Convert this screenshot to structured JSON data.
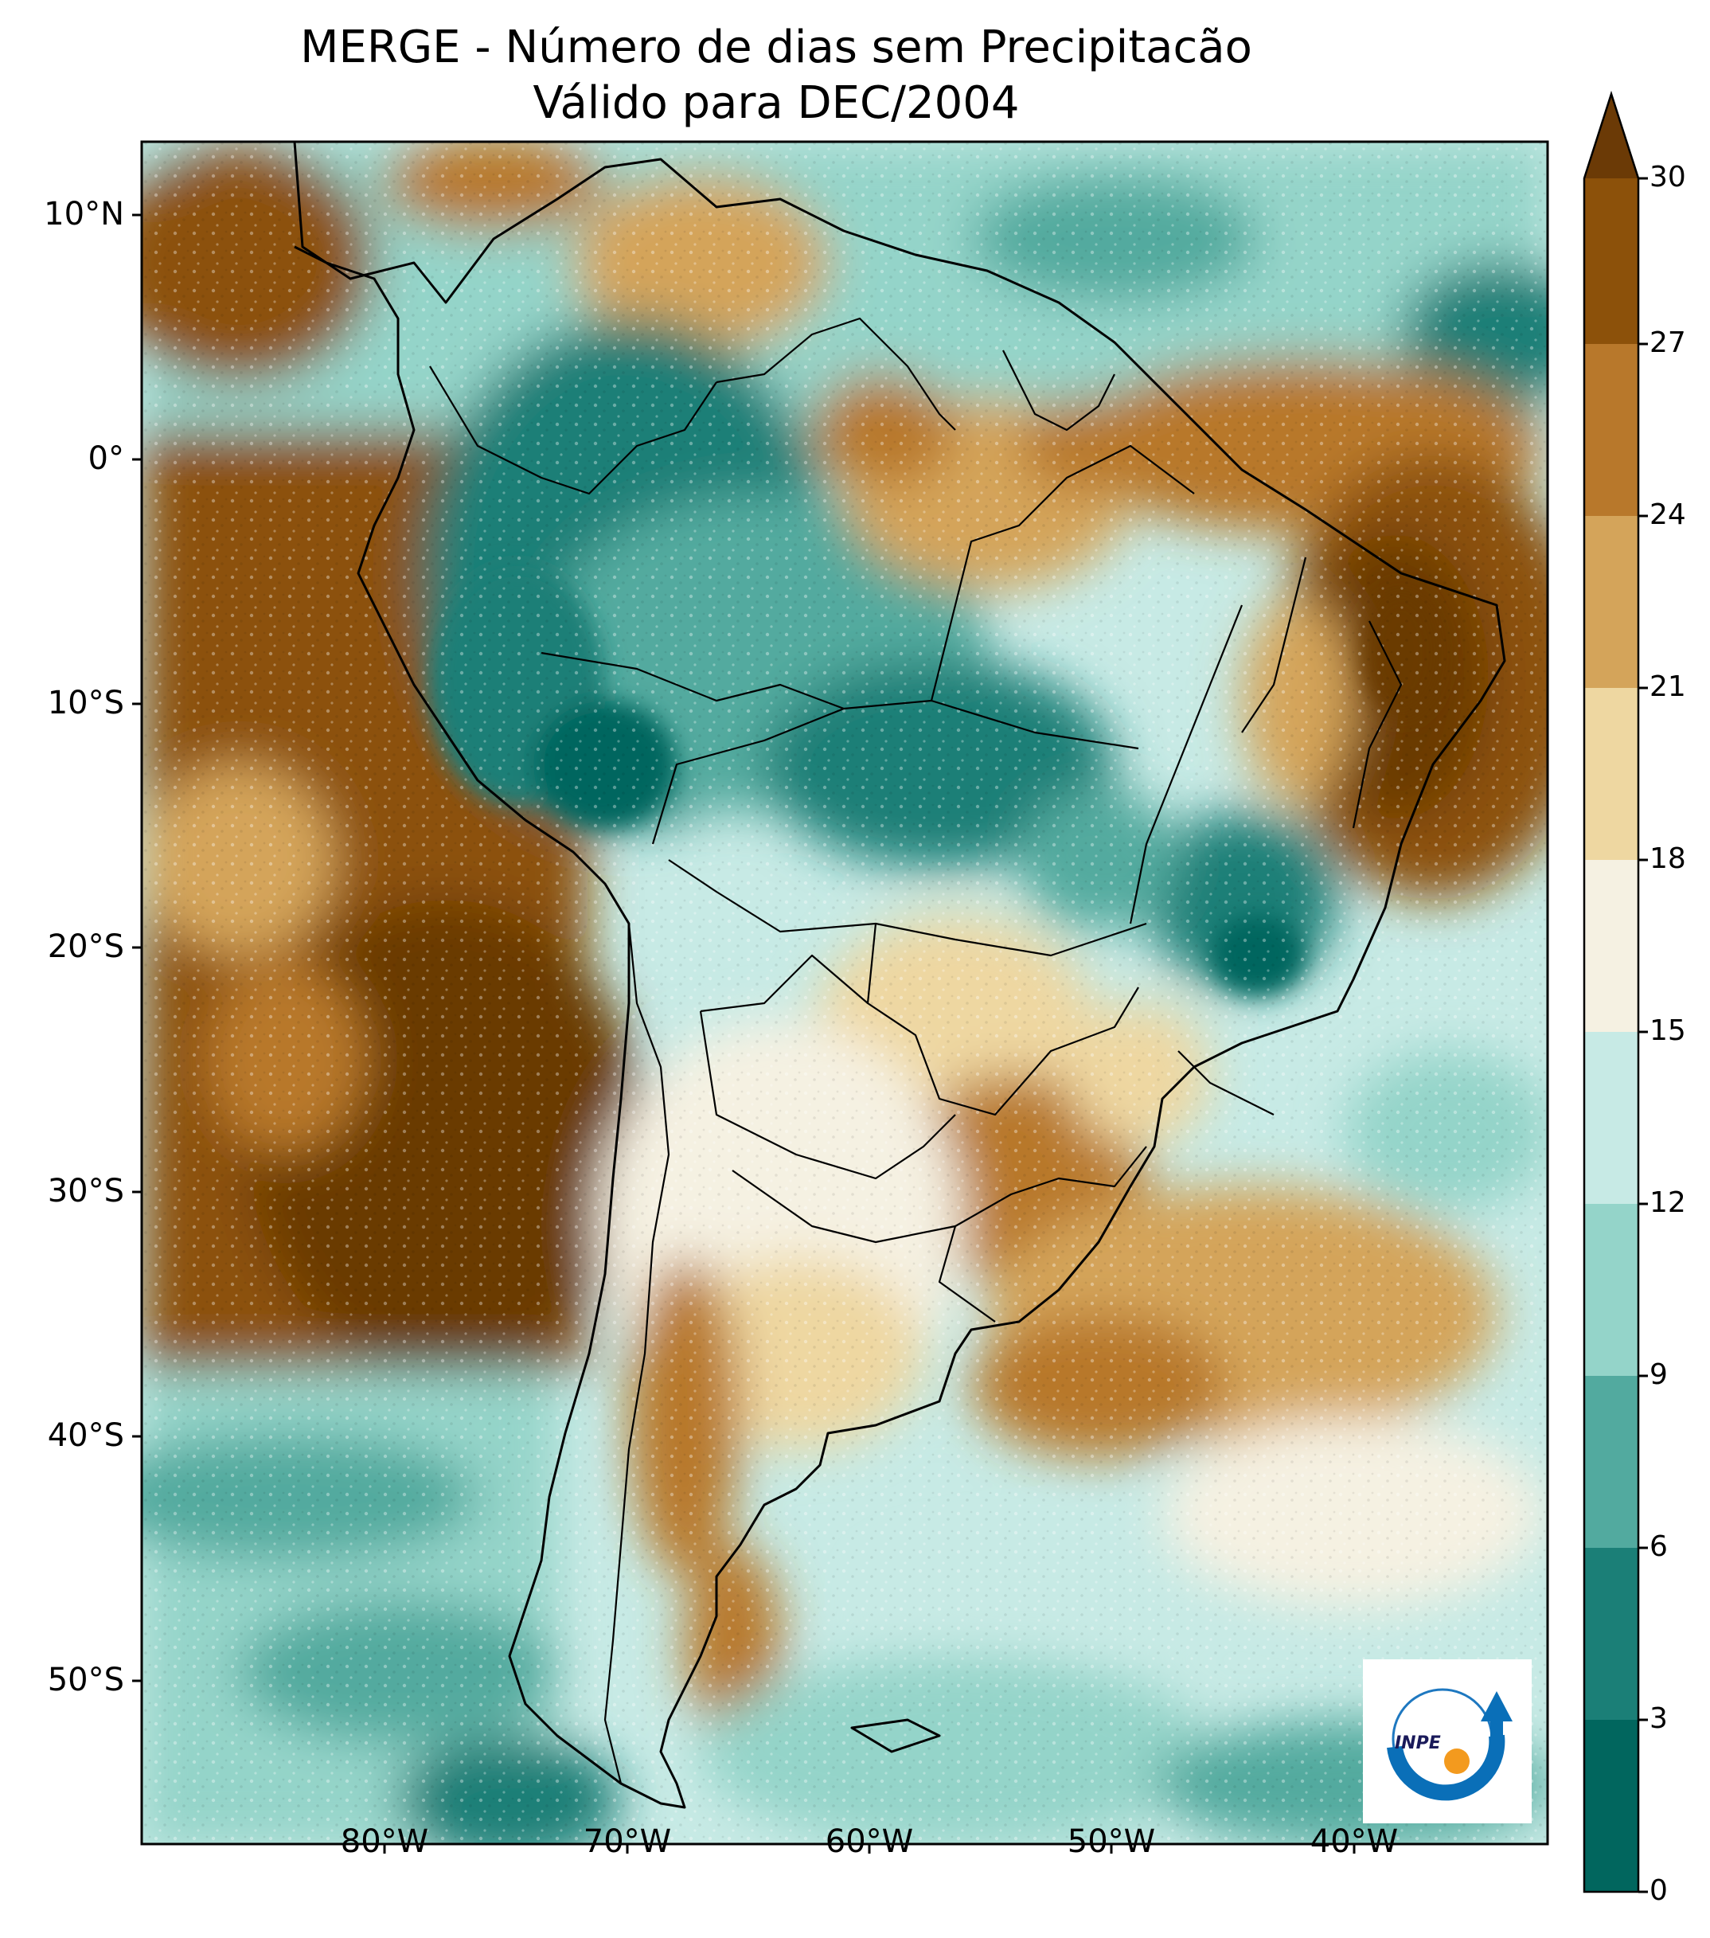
{
  "title": {
    "line1": "MERGE - Número de dias sem Precipitacão",
    "line2": "Válido para DEC/2004"
  },
  "axes": {
    "lat_labels": [
      "10°N",
      "0°",
      "10°S",
      "20°S",
      "30°S",
      "40°S",
      "50°S"
    ],
    "lon_labels": [
      "80°W",
      "70°W",
      "60°W",
      "50°W",
      "40°W"
    ],
    "lon_range": [
      -88,
      -30
    ],
    "lat_range": [
      -57,
      13
    ]
  },
  "colorbar": {
    "ticks": [
      "0",
      "3",
      "6",
      "9",
      "12",
      "15",
      "18",
      "21",
      "24",
      "27",
      "30"
    ],
    "extend": "max",
    "colors": [
      "#01665e",
      "#1b7f77",
      "#52aa9f",
      "#94d4c9",
      "#c7eae5",
      "#f5f1e2",
      "#eed7a1",
      "#d4a45a",
      "#b8782b",
      "#8c510a",
      "#6b3a06"
    ]
  },
  "logo": {
    "text": "INPE"
  }
}
